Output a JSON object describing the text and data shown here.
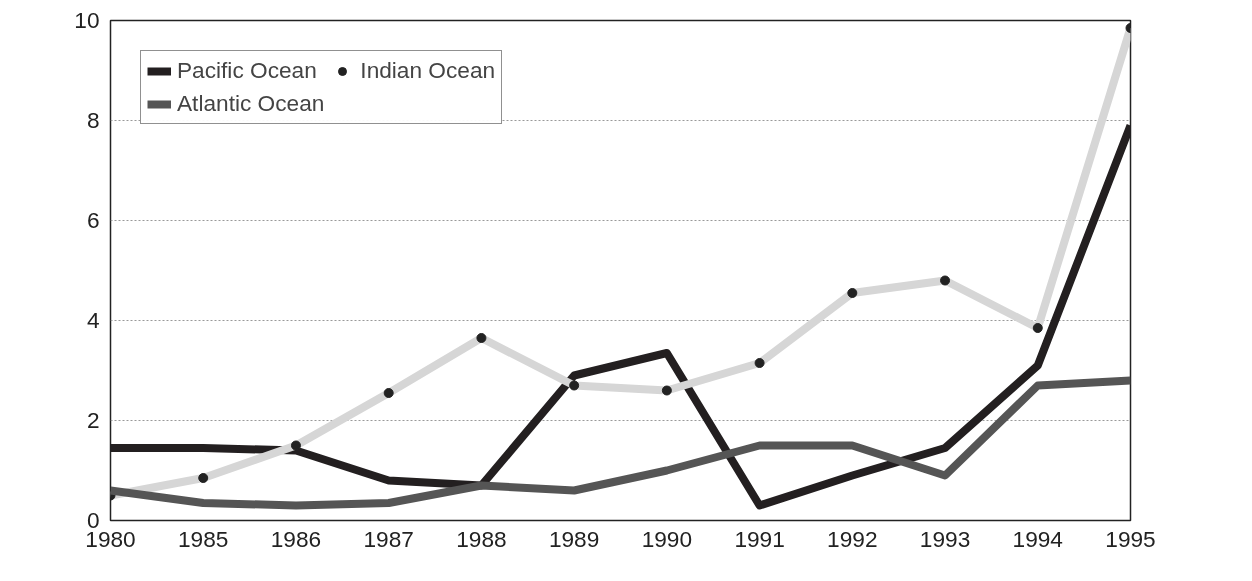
{
  "chart_data": {
    "type": "line",
    "categories": [
      "1980",
      "1985",
      "1986",
      "1987",
      "1988",
      "1989",
      "1990",
      "1991",
      "1992",
      "1993",
      "1994",
      "1995"
    ],
    "series": [
      {
        "name": "Pacific Ocean",
        "color": "#231f20",
        "marker": "none",
        "values": [
          1.45,
          1.45,
          1.4,
          0.8,
          0.7,
          2.9,
          3.35,
          0.3,
          0.9,
          1.45,
          3.1,
          7.9
        ]
      },
      {
        "name": "Indian Ocean",
        "color": "#d6d6d6",
        "marker": "circle",
        "values": [
          0.5,
          0.85,
          1.5,
          2.55,
          3.65,
          2.7,
          2.6,
          3.15,
          4.55,
          4.8,
          3.85,
          9.85
        ]
      },
      {
        "name": "Atlantic Ocean",
        "color": "#555555",
        "marker": "none",
        "values": [
          0.6,
          0.35,
          0.3,
          0.35,
          0.7,
          0.6,
          1.0,
          1.5,
          1.5,
          0.9,
          2.7,
          2.8
        ]
      }
    ],
    "ylim": [
      0,
      10
    ],
    "yticks": [
      0,
      2,
      4,
      6,
      8,
      10
    ],
    "grid": "y",
    "legend": "top left",
    "line_style": "solid"
  }
}
